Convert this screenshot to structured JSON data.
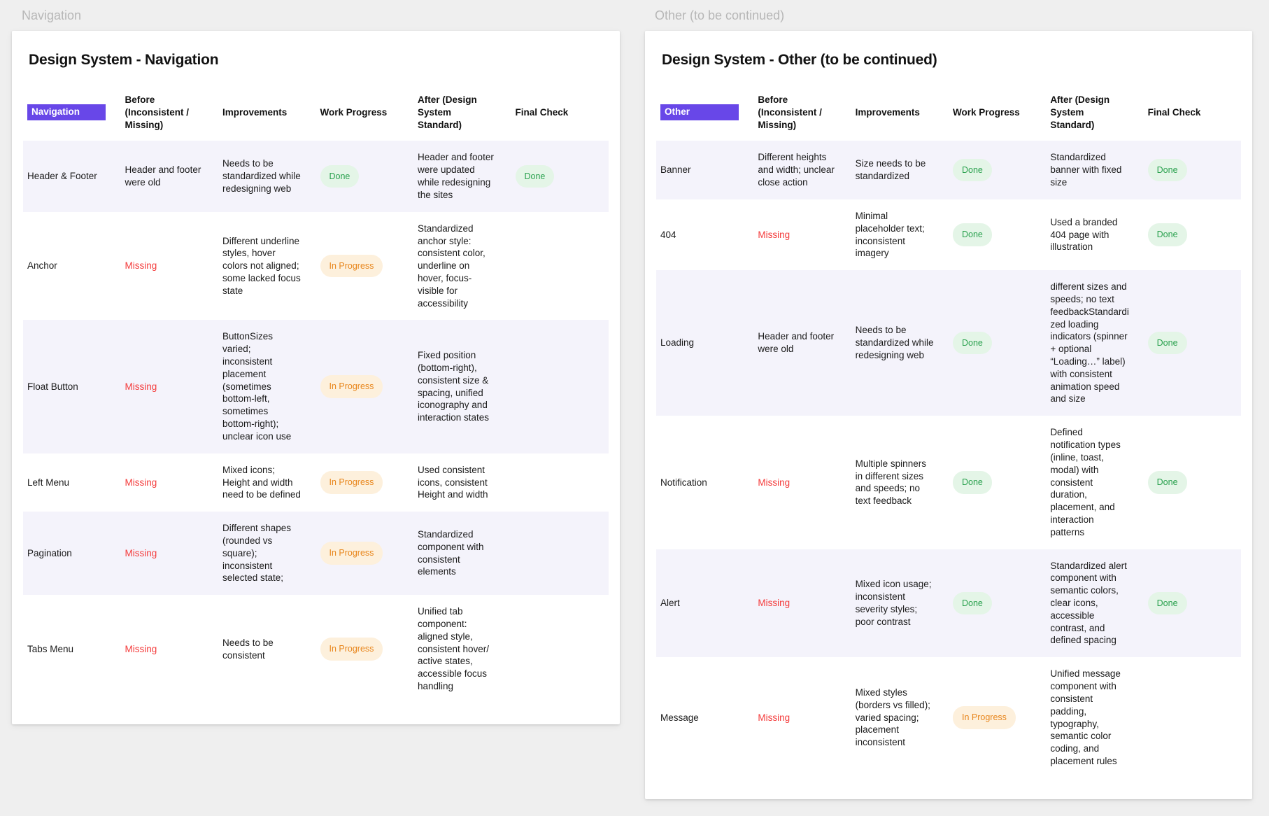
{
  "colors": {
    "accent": "#6847e8",
    "row_alt": "#f4f3fb",
    "done_bg": "#e4f5e7",
    "done_fg": "#2aa14e",
    "progress_bg": "#fdf0dc",
    "progress_fg": "#e8861c",
    "missing_fg": "#f43b3b",
    "canvas_bg": "#efefef",
    "label_fg": "#b7b7b7"
  },
  "frames": [
    {
      "label": "Navigation",
      "title": "Design System - Navigation",
      "columns": {
        "key": "Navigation",
        "before": "Before (Inconsistent / Missing)",
        "improvements": "Improvements",
        "progress": "Work Progress",
        "after": "After (Design System Standard)",
        "final": "Final Check"
      },
      "rows": [
        {
          "name": "Header & Footer",
          "before": "Header and footer were old",
          "improvements": "Needs to be standardized while redesigning web",
          "progress": "Done",
          "after": "Header and footer were updated while redesigning the sites",
          "final": "Done"
        },
        {
          "name": "Anchor",
          "before": "Missing",
          "improvements": "Different underline styles, hover colors not aligned; some lacked focus state",
          "progress": "In Progress",
          "after": "Standardized anchor style: consistent color, underline on hover, focus-visible for accessibility",
          "final": ""
        },
        {
          "name": "Float Button",
          "before": "Missing",
          "improvements": "ButtonSizes varied; inconsistent placement (sometimes bottom-left, sometimes bottom-right); unclear icon use",
          "progress": "In Progress",
          "after": "Fixed position (bottom-right), consistent size & spacing, unified iconography and interaction states",
          "final": ""
        },
        {
          "name": "Left Menu",
          "before": "Missing",
          "improvements": "Mixed icons; Height and width need to be defined",
          "progress": "In Progress",
          "after": "Used consistent icons, consistent Height and width",
          "final": ""
        },
        {
          "name": "Pagination",
          "before": "Missing",
          "improvements": "Different shapes (rounded vs square); inconsistent selected state;",
          "progress": "In Progress",
          "after": "Standardized component with consistent elements",
          "final": ""
        },
        {
          "name": "Tabs Menu",
          "before": "Missing",
          "improvements": "Needs to be consistent",
          "progress": "In Progress",
          "after": "Unified tab component: aligned style, consistent hover/ active states, accessible focus handling",
          "final": ""
        }
      ]
    },
    {
      "label": "Other (to be continued)",
      "title": "Design System - Other (to be continued)",
      "columns": {
        "key": "Other",
        "before": "Before (Inconsistent / Missing)",
        "improvements": "Improvements",
        "progress": "Work Progress",
        "after": "After (Design System Standard)",
        "final": "Final Check"
      },
      "rows": [
        {
          "name": "Banner",
          "before": "Different heights and width; unclear close action",
          "improvements": "Size needs to be standardized",
          "progress": "Done",
          "after": "Standardized banner with fixed size",
          "final": "Done"
        },
        {
          "name": "404",
          "before": "Missing",
          "improvements": "Minimal placeholder text; inconsistent imagery",
          "progress": "Done",
          "after": "Used a branded 404 page with illustration",
          "final": "Done"
        },
        {
          "name": "Loading",
          "before": "Header and footer were old",
          "improvements": "Needs to be standardized while redesigning web",
          "progress": "Done",
          "after": " different sizes and speeds; no text feedbackStandardized loading indicators (spinner + optional “Loading…” label) with consistent animation speed and size",
          "final": "Done"
        },
        {
          "name": "Notification",
          "before": "Missing",
          "improvements": "Multiple spinners in different sizes and speeds; no text feedback",
          "progress": "Done",
          "after": "Defined notification types (inline, toast, modal) with consistent duration, placement, and interaction patterns",
          "final": "Done"
        },
        {
          "name": "Alert",
          "before": "Missing",
          "improvements": "Mixed icon usage; inconsistent severity styles; poor contrast",
          "progress": "Done",
          "after": "Standardized alert component with semantic colors, clear icons, accessible contrast, and defined spacing",
          "final": "Done"
        },
        {
          "name": "Message",
          "before": "Missing",
          "improvements": "Mixed styles (borders vs filled); varied spacing; placement inconsistent",
          "progress": "In Progress",
          "after": "Unified message component with consistent padding, typography, semantic color coding, and placement rules",
          "final": ""
        }
      ]
    }
  ]
}
